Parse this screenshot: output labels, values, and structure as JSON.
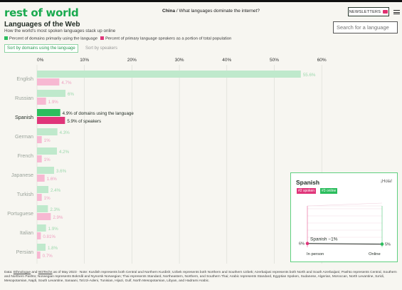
{
  "header": {
    "logo": "rest of world",
    "crumb_section": "China",
    "crumb_sep": " / ",
    "crumb_title": "What languages dominate the internet?",
    "newsletters_label": "NEWSLETTERS",
    "search_placeholder": "Search for a language"
  },
  "page": {
    "title": "Languages of the Web",
    "subtitle": "How the world's most spoken languages stack up online"
  },
  "legend": {
    "domains": "Percent of domains primarily using the language",
    "speakers": "Percent of primary language speakers as a portion of total population"
  },
  "sort": {
    "active": "Sort by domains using the language",
    "inactive": "Sort by speakers"
  },
  "colors": {
    "domains_light": "#bfe9cc",
    "speakers_light": "#f7b8d2",
    "domains_strong": "#2bbd5d",
    "speakers_strong": "#e0357a",
    "brand": "#1aaa4f"
  },
  "chart_data": {
    "type": "bar",
    "orientation": "horizontal",
    "x_ticks": [
      "0%",
      "10%",
      "20%",
      "30%",
      "40%",
      "50%",
      "60%"
    ],
    "xlim": [
      0,
      60
    ],
    "categories": [
      "English",
      "Russian",
      "Spanish",
      "German",
      "French",
      "Japanese",
      "Turkish",
      "Portuguese",
      "Italian",
      "Persian"
    ],
    "highlighted": "Spanish",
    "series": [
      {
        "key": "domains",
        "values": [
          55.6,
          6,
          4.9,
          4.3,
          4.2,
          3.6,
          2.4,
          2.3,
          1.9,
          1.8
        ],
        "labels": [
          "55.6%",
          "6%",
          "4.9% of domains using the language",
          "4.3%",
          "4.2%",
          "3.6%",
          "2.4%",
          "2.3%",
          "1.9%",
          "1.8%"
        ]
      },
      {
        "key": "speakers",
        "values": [
          4.7,
          1.9,
          5.9,
          1,
          1,
          1.6,
          1,
          2.9,
          0.81,
          0.7
        ],
        "labels": [
          "4.7%",
          "1.9%",
          "5.9% of speakers",
          "1%",
          "1%",
          "1.6%",
          "1%",
          "2.9%",
          "0.81%",
          "0.7%"
        ]
      }
    ]
  },
  "detail": {
    "language": "Spanish",
    "greeting": "¡Hola!",
    "badge_spoken": "#2 spoken",
    "badge_online": "#3 online",
    "line_label": "Spanish −1%",
    "left_value": "6%",
    "right_value": "5%",
    "left_axis": "In person",
    "right_axis": "Online",
    "in_person_pct": 5.9,
    "online_pct": 4.9
  },
  "footer": {
    "prefix": "Data: ",
    "source1": "Ethnologue",
    "and": " and ",
    "source2": "W3Techs",
    "rest": " as of May 2023 · Note: Kurdish represents both Central and Northern Kurdish; Uzbek represents both Northern and Southern Uzbek; Azerbaijani represents both North and South Azerbaijani; Pashto represents Central, Southern and Northern Pashto; Norwegian represents Bokmål and Nynorsk Norwegian; Thai represents Standard, Northeastern, Northern, and Southern Thai; Arabic represents Standard, Egyptian Spoken, Sudanese, Algerian, Moroccan, North Levantine, Sa'idi, Mesopotamian, Najdi, South Levantine, Sanaani, Ta'izzi-Adeni, Tunisian, Hijazi, Gulf, North Mesopotamian, Libyan, and Hadrami Arabic."
  }
}
